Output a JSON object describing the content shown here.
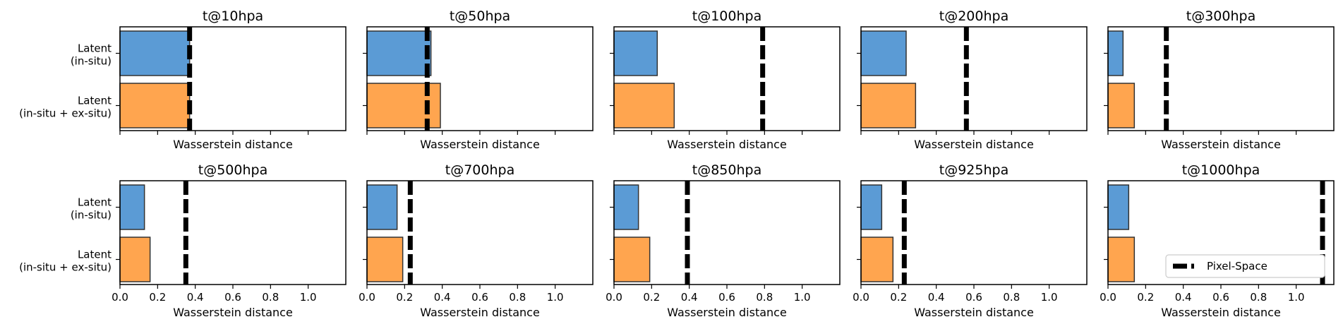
{
  "chart_data": {
    "type": "bar",
    "orientation": "horizontal",
    "layout": {
      "rows": 2,
      "cols": 5
    },
    "categories": [
      "Latent\n(in-situ)",
      "Latent\n(in-situ + ex-situ)"
    ],
    "xlim": [
      0,
      1.2
    ],
    "xticks": [
      0.0,
      0.2,
      0.4,
      0.6,
      0.8,
      1.0
    ],
    "xlabel": "Wasserstein distance",
    "colors": {
      "in_situ": "#5b9bd5",
      "in_situ_ex_situ": "#ffa54f",
      "reference": "#000000"
    },
    "reference_label": "Pixel-Space",
    "legend_location": "lower-right (last panel)",
    "panels": [
      {
        "title": "t@10hpa",
        "values": [
          0.37,
          0.37
        ],
        "reference": 0.37
      },
      {
        "title": "t@50hpa",
        "values": [
          0.34,
          0.39
        ],
        "reference": 0.32
      },
      {
        "title": "t@100hpa",
        "values": [
          0.23,
          0.32
        ],
        "reference": 0.79
      },
      {
        "title": "t@200hpa",
        "values": [
          0.24,
          0.29
        ],
        "reference": 0.56
      },
      {
        "title": "t@300hpa",
        "values": [
          0.08,
          0.14
        ],
        "reference": 0.31
      },
      {
        "title": "t@500hpa",
        "values": [
          0.13,
          0.16
        ],
        "reference": 0.35
      },
      {
        "title": "t@700hpa",
        "values": [
          0.16,
          0.19
        ],
        "reference": 0.23
      },
      {
        "title": "t@850hpa",
        "values": [
          0.13,
          0.19
        ],
        "reference": 0.39
      },
      {
        "title": "t@925hpa",
        "values": [
          0.11,
          0.17
        ],
        "reference": 0.23
      },
      {
        "title": "t@1000hpa",
        "values": [
          0.11,
          0.14
        ],
        "reference": 1.14
      }
    ]
  }
}
